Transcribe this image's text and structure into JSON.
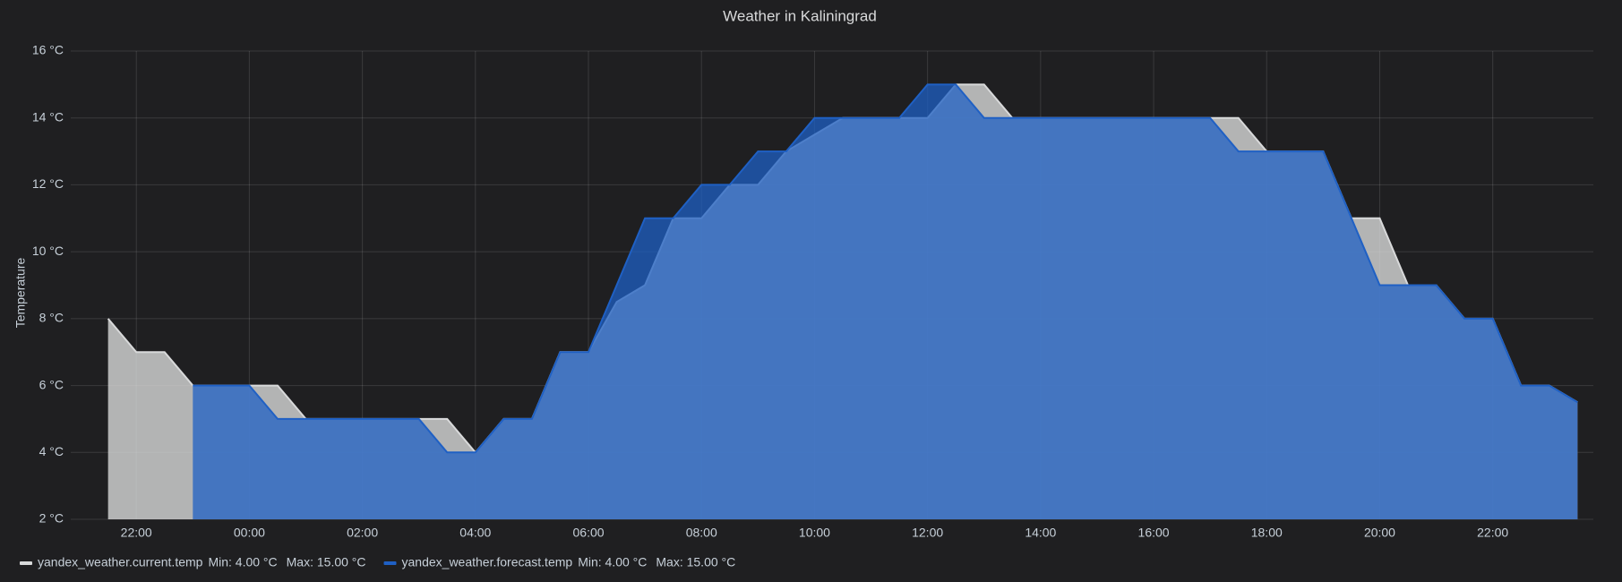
{
  "chart_data": {
    "type": "line",
    "title": "Weather in Kaliningrad",
    "y_label": "Temperature",
    "x": [
      -2.5,
      -2,
      -1.5,
      -1,
      -0.5,
      0,
      0.5,
      1,
      1.5,
      2,
      2.5,
      3,
      3.5,
      4,
      4.5,
      5,
      5.5,
      6,
      6.5,
      7,
      7.5,
      8,
      8.5,
      9,
      9.5,
      10,
      10.5,
      11,
      11.5,
      12,
      12.5,
      13,
      13.5,
      14,
      14.5,
      15,
      15.5,
      16,
      16.5,
      17,
      17.5,
      18,
      18.5,
      19,
      19.5,
      20,
      20.5,
      21,
      21.5,
      22,
      22.5,
      23,
      23.5
    ],
    "series": [
      {
        "name": "yandex_weather.current.temp",
        "color": "#d8d9da",
        "min_label": "Min: 4.00 °C",
        "max_label": "Max: 15.00 °C",
        "values": [
          8,
          7,
          7,
          6,
          6,
          6,
          6,
          5,
          5,
          5,
          5,
          5,
          5,
          4,
          5,
          5,
          7,
          7,
          8.5,
          9,
          11,
          11,
          12,
          12,
          13,
          13.5,
          14,
          14,
          14,
          14,
          15,
          15,
          14,
          14,
          14,
          14,
          14,
          14,
          14,
          14,
          14,
          13,
          13,
          13,
          11,
          11,
          9,
          9,
          8,
          8,
          6,
          6,
          5.5
        ]
      },
      {
        "name": "yandex_weather.forecast.temp",
        "color": "#1f60c4",
        "min_label": "Min: 4.00 °C",
        "max_label": "Max: 15.00 °C",
        "values": [
          null,
          null,
          null,
          6,
          6,
          6,
          5,
          5,
          5,
          5,
          5,
          5,
          4,
          4,
          5,
          5,
          7,
          7,
          9,
          11,
          11,
          12,
          12,
          13,
          13,
          14,
          14,
          14,
          14,
          15,
          15,
          14,
          14,
          14,
          14,
          14,
          14,
          14,
          14,
          14,
          13,
          13,
          13,
          13,
          11,
          9,
          9,
          9,
          8,
          8,
          6,
          6,
          5.5
        ]
      }
    ],
    "xlim": [
      -3.16,
      23.78
    ],
    "xticks": [
      {
        "value": -2,
        "label": "22:00"
      },
      {
        "value": 0,
        "label": "00:00"
      },
      {
        "value": 2,
        "label": "02:00"
      },
      {
        "value": 4,
        "label": "04:00"
      },
      {
        "value": 6,
        "label": "06:00"
      },
      {
        "value": 8,
        "label": "08:00"
      },
      {
        "value": 10,
        "label": "10:00"
      },
      {
        "value": 12,
        "label": "12:00"
      },
      {
        "value": 14,
        "label": "14:00"
      },
      {
        "value": 16,
        "label": "16:00"
      },
      {
        "value": 18,
        "label": "18:00"
      },
      {
        "value": 20,
        "label": "20:00"
      },
      {
        "value": 22,
        "label": "22:00"
      }
    ],
    "ylim": [
      2,
      16
    ],
    "yticks": [
      {
        "value": 2,
        "label": "2 °C"
      },
      {
        "value": 4,
        "label": "4 °C"
      },
      {
        "value": 6,
        "label": "6 °C"
      },
      {
        "value": 8,
        "label": "8 °C"
      },
      {
        "value": 10,
        "label": "10 °C"
      },
      {
        "value": 12,
        "label": "12 °C"
      },
      {
        "value": 14,
        "label": "14 °C"
      },
      {
        "value": 16,
        "label": "16 °C"
      }
    ],
    "grid": true,
    "legend": "bottom"
  }
}
